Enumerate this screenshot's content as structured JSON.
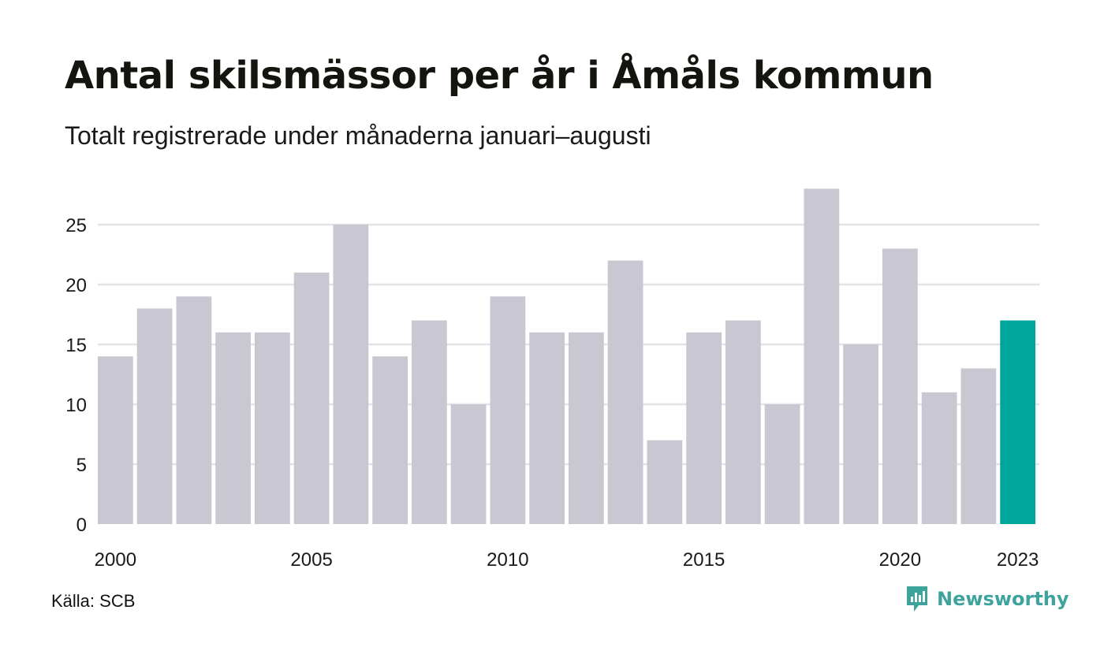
{
  "title": "Antal skilsmässor per år i Åmåls kommun",
  "subtitle": "Totalt registrerade under månaderna januari–augusti",
  "source": "Källa: SCB",
  "brand": {
    "name": "Newsworthy",
    "icon": "newsworthy-logo-icon"
  },
  "colors": {
    "bar": "#c8c7d2",
    "highlight": "#00a69a",
    "grid": "#e3e3e6",
    "brand": "#3ea39d"
  },
  "chart_data": {
    "type": "bar",
    "categories": [
      "2000",
      "2001",
      "2002",
      "2003",
      "2004",
      "2005",
      "2006",
      "2007",
      "2008",
      "2009",
      "2010",
      "2011",
      "2012",
      "2013",
      "2014",
      "2015",
      "2016",
      "2017",
      "2018",
      "2019",
      "2020",
      "2021",
      "2022",
      "2023"
    ],
    "values": [
      14,
      18,
      19,
      16,
      16,
      21,
      25,
      14,
      17,
      10,
      19,
      16,
      16,
      22,
      7,
      16,
      17,
      10,
      28,
      15,
      23,
      11,
      13,
      17
    ],
    "highlight_category": "2023",
    "x_tick_labels": [
      "2000",
      "2005",
      "2010",
      "2015",
      "2020",
      "2023"
    ],
    "y_ticks": [
      0,
      5,
      10,
      15,
      20,
      25
    ],
    "ylim": [
      0,
      28
    ],
    "grid": true,
    "legend": "none"
  }
}
